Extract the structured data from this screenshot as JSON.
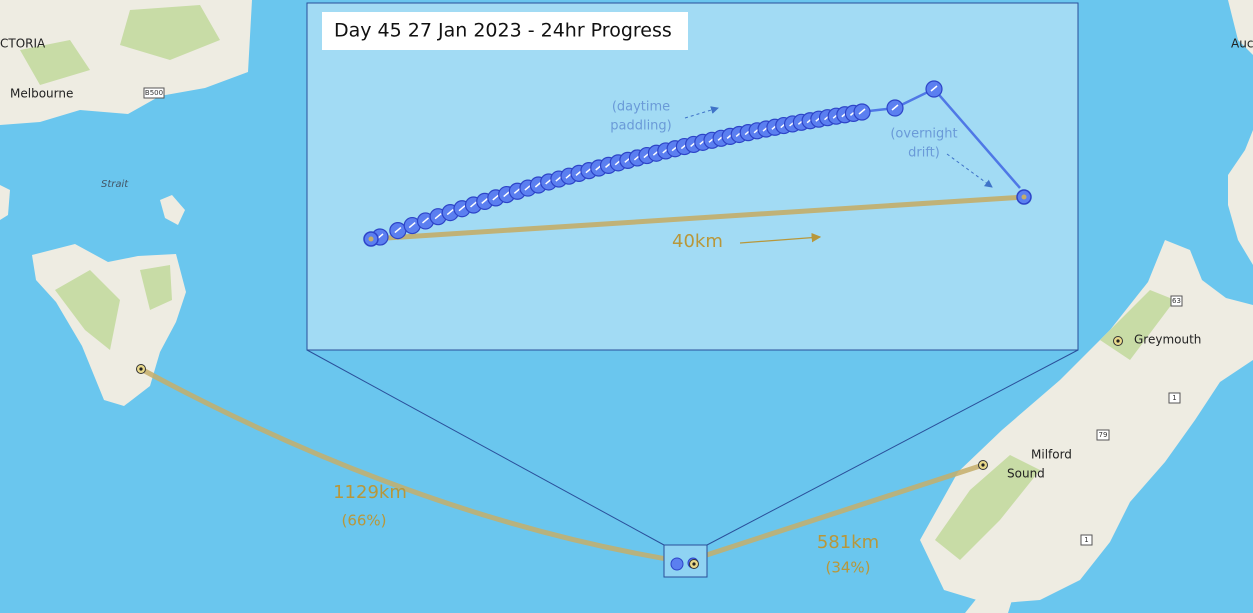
{
  "inset": {
    "title": "Day 45 27 Jan 2023 - 24hr Progress",
    "distance": "40km",
    "daytime_note": [
      "(daytime",
      "paddling)"
    ],
    "overnight_note": [
      "(overnight",
      "drift)"
    ]
  },
  "map_labels": {
    "victoria": "CTORIA",
    "melbourne": "Melbourne",
    "road_b500": "B500",
    "strait": "Strait",
    "auckland": "Auc",
    "greymouth": "Greymouth",
    "milford": [
      "Milford",
      "Sound"
    ],
    "road_63": "63",
    "road_1_north": "1",
    "road_79": "79",
    "road_1_south": "1"
  },
  "legs": [
    {
      "distance": "1129km",
      "share": "(66%)"
    },
    {
      "distance": "581km",
      "share": "(34%)"
    }
  ]
}
